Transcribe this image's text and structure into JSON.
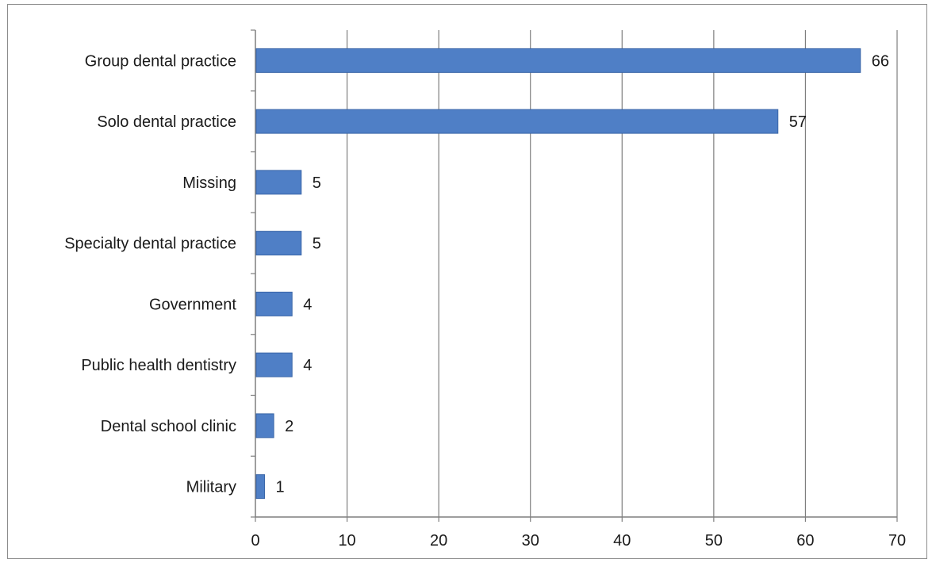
{
  "colors": {
    "bar": "#4f7fc6",
    "bar_stroke": "#3a66a8",
    "grid": "#7f7f7f",
    "axis": "#7f7f7f",
    "text": "#1a1a1a",
    "background": "#ffffff"
  },
  "chart_data": {
    "type": "bar",
    "orientation": "horizontal",
    "title": "",
    "xlabel": "",
    "ylabel": "",
    "categories": [
      "Group dental practice",
      "Solo dental practice",
      "Missing",
      "Specialty dental practice",
      "Government",
      "Public health dentistry",
      "Dental school clinic",
      "Military"
    ],
    "values": [
      66,
      57,
      5,
      5,
      4,
      4,
      2,
      1
    ],
    "data_labels": [
      "66",
      "57",
      "5",
      "5",
      "4",
      "4",
      "2",
      "1"
    ],
    "xlim": [
      0,
      70
    ],
    "x_ticks": [
      0,
      10,
      20,
      30,
      40,
      50,
      60,
      70
    ],
    "x_tick_labels": [
      "0",
      "10",
      "20",
      "30",
      "40",
      "50",
      "60",
      "70"
    ],
    "grid": "vertical",
    "legend": "none"
  }
}
